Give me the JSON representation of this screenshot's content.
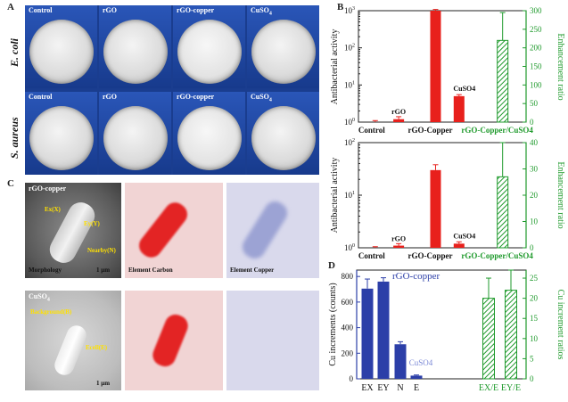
{
  "panels": {
    "a": "A",
    "b": "B",
    "c": "C",
    "d": "D"
  },
  "plates": {
    "columns": [
      "Control",
      "rGO",
      "rGO-copper",
      "CuSO4"
    ],
    "rows": [
      "E. coli",
      "S. aureus"
    ]
  },
  "sem": {
    "top_title": "rGO-copper",
    "bottom_title": "CuSO4",
    "captions": [
      "Morphology",
      "Element Carbon",
      "Element Copper"
    ],
    "scale": "1 μm",
    "top_annotations": [
      "Ex(X)",
      "Ey(Y)",
      "Nearby(N)"
    ],
    "bottom_annotations": [
      "Background(B)",
      "Ecell(E)"
    ]
  },
  "chart_data": [
    {
      "type": "bar",
      "panel": "B-top",
      "categories": [
        "Control",
        "rGO",
        "rGO-Copper",
        "CuSO4"
      ],
      "values": [
        1,
        1.2,
        1000,
        5
      ],
      "errors": [
        0.1,
        0.2,
        80,
        0.5
      ],
      "ratio_category": "rGO-Copper/CuSO4",
      "ratio_value": 220,
      "ratio_error": 75,
      "ylabel": "Antibacterial activity",
      "y2label": "Enhancement ratio",
      "yscale": "log",
      "ylim": [
        1,
        1000
      ],
      "y2lim": [
        0,
        300
      ],
      "y2ticks": [
        0,
        50,
        100,
        150,
        200,
        250,
        300
      ]
    },
    {
      "type": "bar",
      "panel": "B-bottom",
      "categories": [
        "Control",
        "rGO",
        "rGO-Copper",
        "CuSO4"
      ],
      "values": [
        1,
        1.1,
        30,
        1.2
      ],
      "errors": [
        0.05,
        0.1,
        8,
        0.1
      ],
      "ratio_category": "rGO-Copper/CuSO4",
      "ratio_value": 27,
      "ratio_error": 13,
      "ylabel": "Antibacterial activity",
      "y2label": "Enhancement ratio",
      "yscale": "log",
      "ylim": [
        1,
        100
      ],
      "y2lim": [
        0,
        40
      ],
      "y2ticks": [
        0,
        10,
        20,
        30,
        40
      ]
    },
    {
      "type": "bar",
      "panel": "D",
      "categories": [
        "EX",
        "EY",
        "N",
        "E"
      ],
      "values": [
        705,
        760,
        270,
        25
      ],
      "errors": [
        75,
        30,
        20,
        5
      ],
      "series_labels": [
        "rGO-copper",
        "CuSO4"
      ],
      "ratio_categories": [
        "EX/E",
        "EY/E"
      ],
      "ratio_values": [
        20,
        22
      ],
      "ratio_errors": [
        5,
        5
      ],
      "ylabel": "Cu increments (counts)",
      "y2label": "Cu increment ratios",
      "ylim": [
        0,
        850
      ],
      "yticks": [
        0,
        200,
        400,
        600,
        800
      ],
      "y2lim": [
        0,
        27
      ],
      "y2ticks": [
        0,
        5,
        10,
        15,
        20,
        25
      ]
    }
  ],
  "colors": {
    "red": "#e8201c",
    "blue": "#2c3fa8",
    "green": "#1f9a2c",
    "lightblue": "#7a88d6"
  }
}
